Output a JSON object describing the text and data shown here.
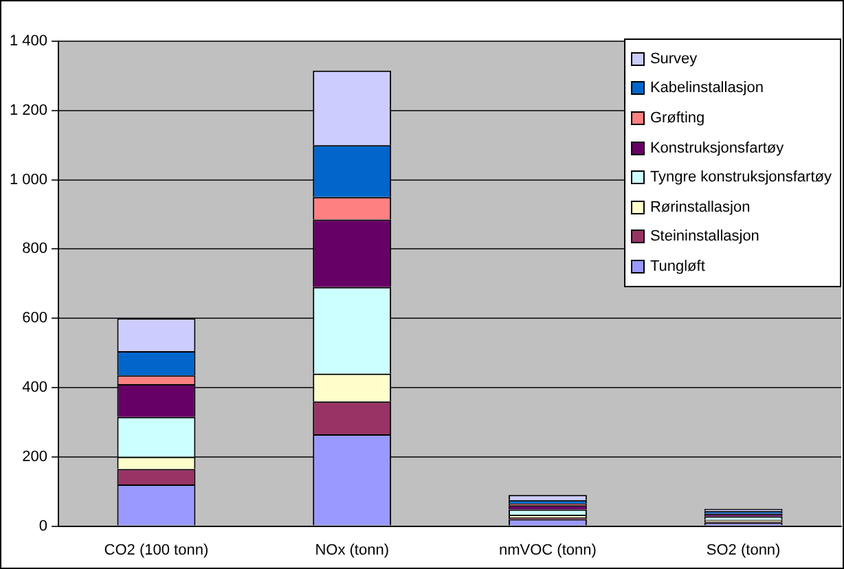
{
  "chart_data": {
    "type": "bar",
    "stacked": true,
    "categories": [
      "CO2 (100 tonn)",
      "NOx (tonn)",
      "nmVOC (tonn)",
      "SO2 (tonn)"
    ],
    "series": [
      {
        "name": "Tungløft",
        "color": "#9999ff",
        "values": [
          120,
          265,
          20,
          10
        ]
      },
      {
        "name": "Steininstallasjon",
        "color": "#993366",
        "values": [
          45,
          95,
          5,
          3
        ]
      },
      {
        "name": "Rørinstallasjon",
        "color": "#ffffcc",
        "values": [
          35,
          80,
          8,
          5
        ]
      },
      {
        "name": "Tyngre konstruksjonsfartøy",
        "color": "#ccffff",
        "values": [
          115,
          250,
          15,
          10
        ]
      },
      {
        "name": "Konstruksjonsfartøy",
        "color": "#660066",
        "values": [
          95,
          195,
          12,
          8
        ]
      },
      {
        "name": "Grøfting",
        "color": "#ff8080",
        "values": [
          25,
          65,
          5,
          null
        ]
      },
      {
        "name": "Kabelinstallasjon",
        "color": "#0066cc",
        "values": [
          70,
          150,
          10,
          8
        ]
      },
      {
        "name": "Survey",
        "color": "#ccccff",
        "values": [
          95,
          215,
          15,
          6
        ]
      }
    ],
    "ylim": [
      0,
      1400
    ],
    "yticks": [
      0,
      200,
      400,
      600,
      800,
      {
        "value": 1000,
        "label": "1 000"
      },
      {
        "value": 1200,
        "label": "1 200"
      },
      {
        "value": 1400,
        "label": "1 400"
      }
    ],
    "grid": "y",
    "legend": "top right"
  }
}
